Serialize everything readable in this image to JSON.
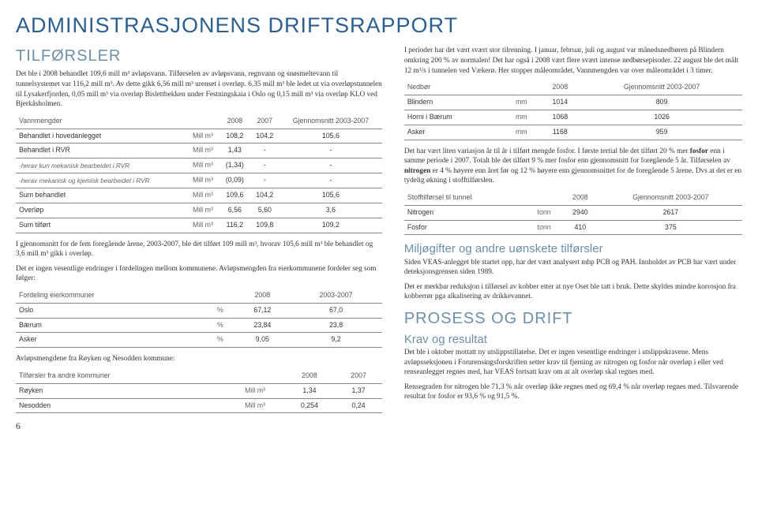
{
  "header": {
    "title": "ADMINISTRASJONENS DRIFTSRAPPORT",
    "title_color": "#2b5f8f",
    "section_tilforsler": "TILFØRSLER",
    "section_color": "#6d8fa8"
  },
  "intro_left": "Det ble i 2008 behandlet 109,6 mill m³ avløpsvann. Tilførselen av avløpsvann, regnvann og snøsmeltevann til tunnelsystemet var 116,2 mill m³. Av dette gikk 6,56 mill m³ urenset i overløp. 6,35 mill m³ ble ledet ut via overløpstunnelen til Lysakerfjorden, 0,05 mill m³ via overløp Bislettbekken under Festningskaia i Oslo og 0,15 mill m³ via overløp KLO ved Bjerkåsholmen.",
  "table_vann": {
    "headers": [
      "Vannmengder",
      "",
      "2008",
      "2007",
      "Gjennomsnitt 2003-2007"
    ],
    "rows": [
      [
        "Behandlet i hovedanlegget",
        "Mill m³",
        "108,2",
        "104,2",
        "105,6"
      ],
      [
        "Behandlet i RVR",
        "Mill m³",
        "1,43",
        "-",
        "-"
      ],
      [
        "-herav kun mekanisk bearbeidet i RVR",
        "Mill m³",
        "(1,34)",
        "-",
        "-"
      ],
      [
        "-herav mekanisk og kjemisk bearbeidet i RVR",
        "Mill m³",
        "(0,09)",
        "-",
        "-"
      ],
      [
        "Sum behandlet",
        "Mill m³",
        "109,6",
        "104,2",
        "105,6"
      ],
      [
        "Overløp",
        "Mill m³",
        "6,56",
        "5,60",
        "3,6"
      ],
      [
        "Sum tilført",
        "Mill m³",
        "116,2",
        "109,8",
        "109,2"
      ]
    ],
    "sub_rows": [
      2,
      3
    ]
  },
  "para_left_2": "I gjennomsnitt for de fem foregående årene, 2003-2007, ble det tilført 109 mill m³, hvorav 105,6 mill m³ ble behandlet og 3,6 mill m³ gikk i overløp.",
  "para_left_3": "Det er ingen vesentlige endringer i fordelingen mellom kommunene. Avløpsmengden fra eierkommunene fordeler seg som følger:",
  "table_fordeling": {
    "headers": [
      "Fordeling eierkommuner",
      "",
      "2008",
      "2003-2007"
    ],
    "rows": [
      [
        "Oslo",
        "%",
        "67,12",
        "67,0"
      ],
      [
        "Bærum",
        "%",
        "23,84",
        "23,8"
      ],
      [
        "Asker",
        "%",
        "9,05",
        "9,2"
      ]
    ]
  },
  "para_left_4": "Avløpsmengdene fra Røyken og Nesodden kommune:",
  "table_andre": {
    "headers": [
      "Tilførsler fra andre kommuner",
      "",
      "2008",
      "2007"
    ],
    "rows": [
      [
        "Røyken",
        "Mill m³",
        "1,34",
        "1,37"
      ],
      [
        "Nesodden",
        "Mill m³",
        "0,254",
        "0,24"
      ]
    ]
  },
  "right_para_1": "I perioder har det vært svært stor tilrenning. I januar, februar, juli og august var månedsnedbøren på Blindern omkring 200 % av normalen! Det har også i 2008 vært flere svært intense nedbørsepisoder. 22 august ble det målt 12 m³/s i tunnelen ved Vækerø. Her stopper måleområdet. Vannmengden var over måleområdet i 3 timer.",
  "table_nedbor": {
    "headers": [
      "Nedbør",
      "",
      "2008",
      "Gjennomsnitt 2003-2007"
    ],
    "rows": [
      [
        "Blindern",
        "mm",
        "1014",
        "809"
      ],
      [
        "Horni i Bærum",
        "mm",
        "1068",
        "1026"
      ],
      [
        "Asker",
        "mm",
        "1168",
        "959"
      ]
    ]
  },
  "right_para_2a": "Det har vært liten variasjon år til år i tilført mengde fosfor. I første tertial ble det tilført 20 % mer ",
  "right_para_2b": "fosfor",
  "right_para_2c": " enn i samme periode i 2007. Totalt ble det tilført 9 % mer fosfor enn gjennomsnitt for foregående 5 år. Tilførselen av ",
  "right_para_2d": "nitrogen",
  "right_para_2e": " er 4 % høyere enn året før og 12 % høyere enn gjennomsnittet for de foregående 5 årene. Dvs at det er en tydelig økning i stofftilførslen.",
  "table_stoff": {
    "headers": [
      "Stofftilførsel til tunnel",
      "",
      "2008",
      "Gjennomsnitt 2003-2007"
    ],
    "rows": [
      [
        "Nitrogen",
        "tonn",
        "2940",
        "2617"
      ],
      [
        "Fosfor",
        "tonn",
        "410",
        "375"
      ]
    ]
  },
  "miljo_heading": "Miljøgifter og andre uønskete tilførsler",
  "miljo_para_1": "Siden VEAS-anlegget ble startet opp, har det vært analysert mhp PCB og PAH. Innholdet av PCB har vært under deteksjonsgrensen siden 1989.",
  "miljo_para_2": "Det er merkbar reduksjon i tilførsel av kobber etter at nye Oset ble tatt i bruk. Dette skyldes mindre korrosjon fra kobberrør pga alkalisering av drikkevannet.",
  "prosess_heading": "PROSESS OG DRIFT",
  "krav_heading": "Krav og resultat",
  "krav_para_1": "Det ble i oktober mottatt ny utslippstillatelse. Det er ingen vesentlige endringer i utslippskravene. Mens avløpsseksjonen i Forurensingsforskriften setter krav til fjerning av nitrogen og fosfor når overløp i eller ved renseanlegget regnes med, har VEAS fortsatt krav om at alt overløp skal regnes med.",
  "krav_para_2": "Rensegraden for nitrogen ble 71,3 % når overløp ikke regnes med og 69,4 % når overløp regnes med. Tilsvarende resultat for fosfor er 93,6 % og 91,5 %.",
  "page_number": "6"
}
